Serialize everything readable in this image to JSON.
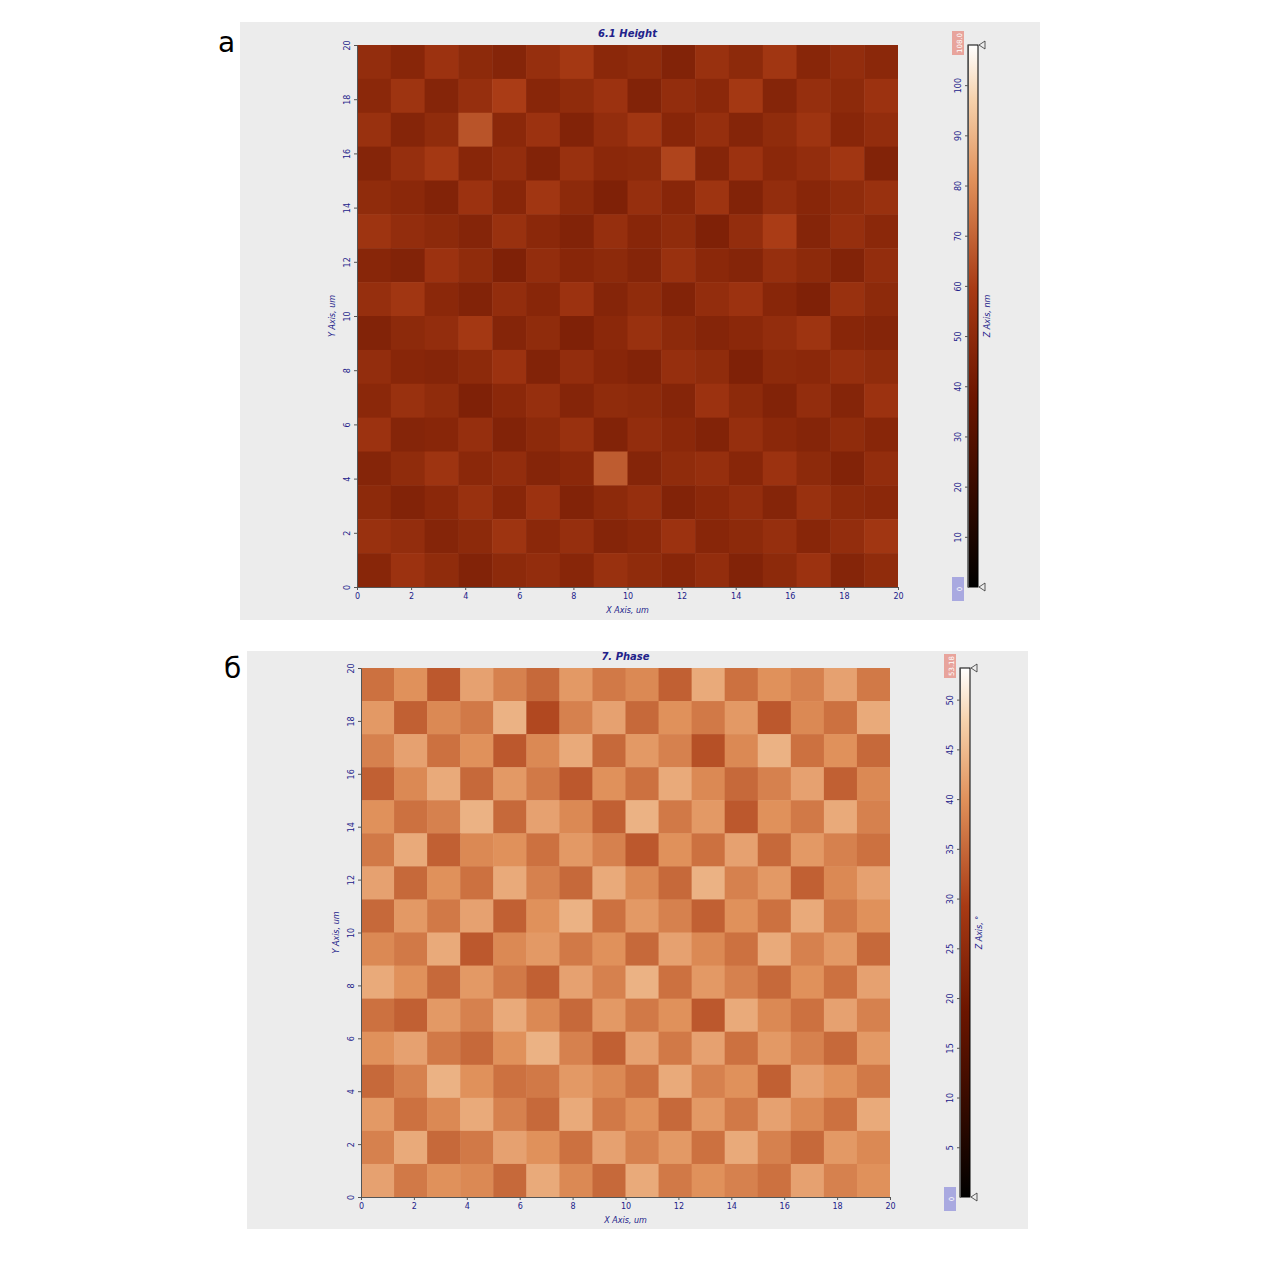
{
  "chart_data": [
    {
      "type": "heatmap",
      "panel_label": "а",
      "title": "6.1 Height",
      "x_label": "X Axis, um",
      "y_label": "Y Axis, um",
      "z_label": "Z Axis, nm",
      "xlim": [
        0,
        20
      ],
      "xticks": [
        0,
        2,
        4,
        6,
        8,
        10,
        12,
        14,
        16,
        18,
        20
      ],
      "ylim": [
        0,
        20
      ],
      "yticks": [
        0,
        2,
        4,
        6,
        8,
        10,
        12,
        14,
        16,
        18,
        20
      ],
      "zlim": [
        0,
        108
      ],
      "zlim_labels": [
        "0",
        "108.0"
      ],
      "zticks": [
        10,
        20,
        30,
        40,
        50,
        60,
        70,
        80,
        90,
        100
      ],
      "cells": [
        [
          52,
          48,
          55,
          50,
          47,
          53,
          58,
          49,
          51,
          46,
          54,
          50,
          57,
          48,
          52,
          49
        ],
        [
          49,
          56,
          47,
          53,
          60,
          48,
          51,
          55,
          46,
          52,
          49,
          58,
          47,
          53,
          50,
          55
        ],
        [
          54,
          47,
          51,
          66,
          49,
          55,
          46,
          52,
          57,
          48,
          53,
          47,
          51,
          56,
          48,
          52
        ],
        [
          47,
          53,
          58,
          48,
          52,
          46,
          54,
          49,
          50,
          62,
          47,
          55,
          49,
          52,
          57,
          46
        ],
        [
          51,
          49,
          46,
          55,
          48,
          57,
          50,
          45,
          53,
          48,
          56,
          46,
          52,
          48,
          51,
          54
        ],
        [
          56,
          52,
          50,
          47,
          54,
          49,
          46,
          53,
          48,
          51,
          45,
          52,
          60,
          47,
          53,
          49
        ],
        [
          48,
          46,
          55,
          51,
          45,
          52,
          48,
          50,
          47,
          54,
          49,
          47,
          53,
          50,
          46,
          52
        ],
        [
          53,
          57,
          49,
          46,
          52,
          48,
          55,
          47,
          51,
          46,
          52,
          55,
          48,
          45,
          54,
          50
        ],
        [
          46,
          50,
          52,
          58,
          47,
          51,
          45,
          49,
          54,
          50,
          47,
          49,
          52,
          56,
          48,
          47
        ],
        [
          52,
          48,
          47,
          50,
          55,
          46,
          52,
          48,
          46,
          53,
          51,
          45,
          50,
          49,
          53,
          51
        ],
        [
          49,
          54,
          51,
          45,
          49,
          53,
          47,
          51,
          50,
          47,
          55,
          50,
          46,
          52,
          47,
          55
        ],
        [
          55,
          47,
          48,
          53,
          46,
          50,
          54,
          46,
          52,
          49,
          46,
          53,
          49,
          47,
          51,
          48
        ],
        [
          47,
          51,
          56,
          49,
          52,
          47,
          49,
          68,
          47,
          51,
          53,
          48,
          55,
          50,
          46,
          52
        ],
        [
          50,
          46,
          49,
          54,
          48,
          55,
          46,
          50,
          53,
          46,
          49,
          52,
          47,
          54,
          50,
          49
        ],
        [
          54,
          52,
          47,
          50,
          56,
          49,
          53,
          47,
          49,
          55,
          48,
          50,
          53,
          48,
          52,
          57
        ],
        [
          48,
          55,
          51,
          46,
          50,
          52,
          48,
          54,
          51,
          48,
          52,
          46,
          50,
          55,
          47,
          51
        ]
      ]
    },
    {
      "type": "heatmap",
      "panel_label": "б",
      "title": "7. Phase",
      "x_label": "X Axis, um",
      "y_label": "Y Axis, um",
      "z_label": "Z Axis, °",
      "xlim": [
        0,
        20
      ],
      "xticks": [
        0,
        2,
        4,
        6,
        8,
        10,
        12,
        14,
        16,
        18,
        20
      ],
      "ylim": [
        0,
        20
      ],
      "yticks": [
        0,
        2,
        4,
        6,
        8,
        10,
        12,
        14,
        16,
        18,
        20
      ],
      "zlim": [
        0,
        53.18
      ],
      "zlim_labels": [
        "0",
        "53.18"
      ],
      "zticks": [
        5,
        10,
        15,
        20,
        25,
        30,
        35,
        40,
        45,
        50
      ],
      "cells": [
        [
          36,
          40,
          33,
          42,
          38,
          35,
          41,
          37,
          39,
          34,
          43,
          36,
          40,
          38,
          42,
          37
        ],
        [
          41,
          34,
          39,
          37,
          44,
          31,
          38,
          42,
          35,
          40,
          37,
          41,
          33,
          39,
          36,
          43
        ],
        [
          38,
          42,
          36,
          40,
          33,
          39,
          43,
          35,
          41,
          38,
          32,
          39,
          44,
          36,
          40,
          35
        ],
        [
          34,
          39,
          43,
          35,
          41,
          37,
          33,
          40,
          36,
          43,
          39,
          35,
          38,
          42,
          34,
          39
        ],
        [
          40,
          36,
          38,
          44,
          35,
          42,
          39,
          34,
          44,
          37,
          41,
          33,
          40,
          37,
          43,
          38
        ],
        [
          37,
          43,
          34,
          39,
          40,
          36,
          41,
          38,
          33,
          40,
          36,
          42,
          35,
          41,
          38,
          36
        ],
        [
          42,
          35,
          40,
          36,
          43,
          38,
          35,
          43,
          39,
          35,
          44,
          38,
          41,
          34,
          39,
          42
        ],
        [
          35,
          41,
          37,
          42,
          34,
          40,
          44,
          36,
          41,
          38,
          34,
          40,
          36,
          43,
          37,
          40
        ],
        [
          39,
          37,
          43,
          33,
          39,
          41,
          37,
          40,
          35,
          42,
          39,
          36,
          43,
          38,
          41,
          35
        ],
        [
          43,
          40,
          35,
          41,
          37,
          34,
          42,
          38,
          44,
          36,
          41,
          38,
          35,
          40,
          36,
          42
        ],
        [
          36,
          34,
          41,
          38,
          43,
          39,
          35,
          41,
          37,
          40,
          33,
          43,
          39,
          36,
          42,
          38
        ],
        [
          40,
          42,
          37,
          35,
          40,
          44,
          38,
          34,
          42,
          37,
          42,
          36,
          41,
          38,
          35,
          41
        ],
        [
          35,
          38,
          44,
          40,
          36,
          37,
          41,
          39,
          36,
          43,
          38,
          40,
          34,
          42,
          40,
          37
        ],
        [
          41,
          36,
          39,
          43,
          38,
          35,
          43,
          37,
          40,
          35,
          41,
          37,
          42,
          39,
          36,
          43
        ],
        [
          38,
          43,
          35,
          37,
          42,
          40,
          36,
          42,
          38,
          41,
          36,
          43,
          38,
          35,
          41,
          39
        ],
        [
          42,
          37,
          40,
          39,
          35,
          43,
          39,
          35,
          43,
          37,
          40,
          38,
          36,
          42,
          38,
          40
        ]
      ]
    }
  ]
}
